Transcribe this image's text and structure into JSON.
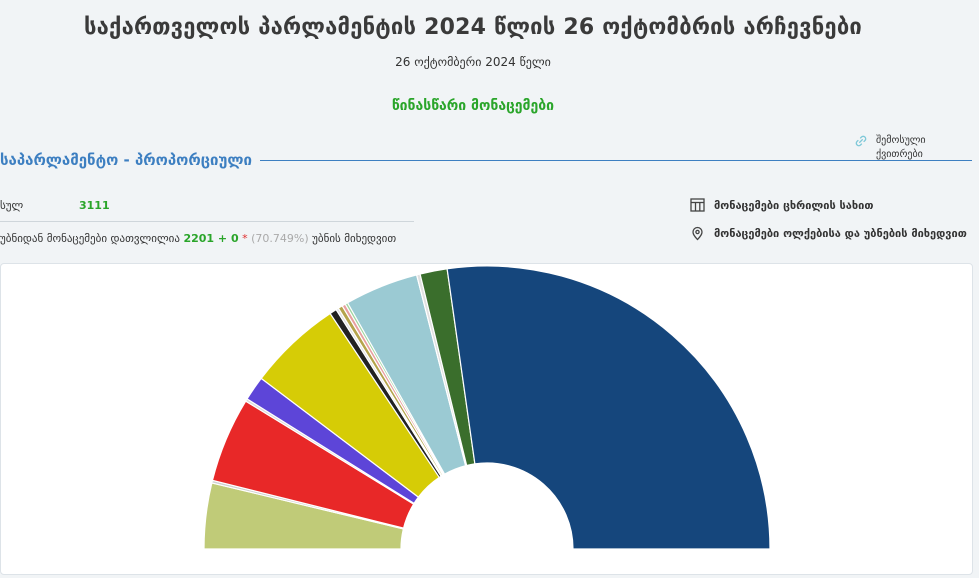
{
  "header": {
    "title": "საქართველოს პარლამენტის 2024 წლის 26 ოქტომბრის არჩევნები",
    "date": "26 ოქტომბერი 2024 წელი",
    "preliminary": "წინასწარი მონაცემები"
  },
  "link": {
    "label": "შემოსული ქვითრები",
    "icon": "link-icon"
  },
  "section": {
    "title": "საპარლამენტო - პროპორციული"
  },
  "stats": {
    "total_label": "სულ",
    "total_value": "3111",
    "counted_label": "უბნიდან მონაცემები დათვლილია",
    "counted_value": "2201 + 0",
    "star": "*",
    "percent": "(70.749%)",
    "by_label": "უბნის მიხედვით"
  },
  "options": {
    "table_view": {
      "label": "მონაცემები ცხრილის სახით",
      "icon": "table-icon"
    },
    "map_view": {
      "label": "მონაცემები ოლქებისა და უბნების მიხედვით",
      "icon": "map-pin-icon"
    }
  },
  "chart_data": {
    "type": "pie",
    "subtype": "semicircle-donut",
    "slices": [
      {
        "color": "#c0cb78",
        "value": 7.5
      },
      {
        "color": "#cfcfcf",
        "value": 0.3
      },
      {
        "color": "#e82828",
        "value": 9.7
      },
      {
        "color": "#dcdcdc",
        "value": 0.3
      },
      {
        "color": "#5d45d8",
        "value": 2.8
      },
      {
        "color": "#d6cc06",
        "value": 10.7
      },
      {
        "color": "#222222",
        "value": 0.8
      },
      {
        "color": "#e2e2e2",
        "value": 0.3
      },
      {
        "color": "#b5a44c",
        "value": 0.5
      },
      {
        "color": "#e8a0a0",
        "value": 0.4
      },
      {
        "color": "#a0d6a0",
        "value": 0.3
      },
      {
        "color": "#9bcad3",
        "value": 8.4
      },
      {
        "color": "#e0e0e0",
        "value": 0.4
      },
      {
        "color": "#3a6e2c",
        "value": 3.1
      },
      {
        "color": "#15467c",
        "value": 54.5
      }
    ]
  }
}
